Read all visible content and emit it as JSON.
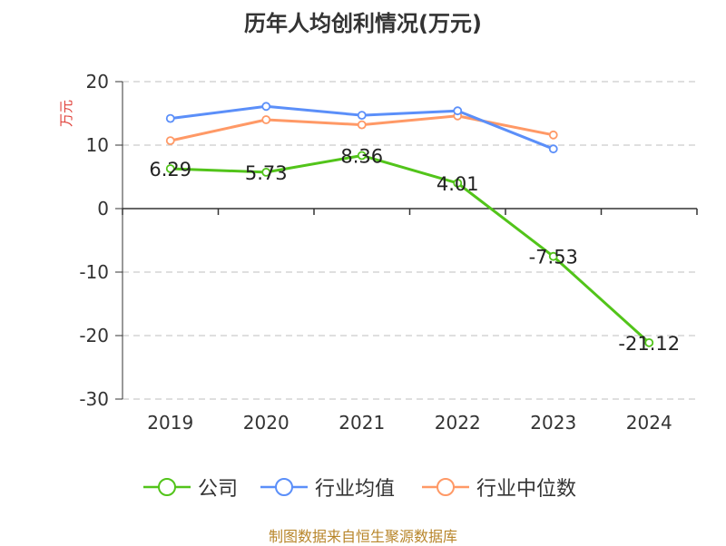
{
  "chart_data": {
    "type": "line",
    "title": "历年人均创利情况(万元)",
    "ylabel": "万元",
    "categories": [
      "2019",
      "2020",
      "2021",
      "2022",
      "2023",
      "2024"
    ],
    "ylim": [
      -30,
      20
    ],
    "yticks": [
      -30,
      -20,
      -10,
      0,
      10,
      20
    ],
    "grid": true,
    "legend_position": "bottom",
    "series": [
      {
        "name": "公司",
        "color": "#52C41A",
        "values": [
          6.29,
          5.73,
          8.36,
          4.01,
          -7.53,
          -21.12
        ],
        "labels": [
          "6.29",
          "5.73",
          "8.36",
          "4.01",
          "-7.53",
          "-21.12"
        ]
      },
      {
        "name": "行业均值",
        "color": "#5B8FF9",
        "values": [
          14.2,
          16.1,
          14.7,
          15.4,
          9.4,
          null
        ]
      },
      {
        "name": "行业中位数",
        "color": "#FF9966",
        "values": [
          10.7,
          14.0,
          13.2,
          14.6,
          11.6,
          null
        ]
      }
    ]
  },
  "footer": {
    "source": "制图数据来自恒生聚源数据库"
  }
}
